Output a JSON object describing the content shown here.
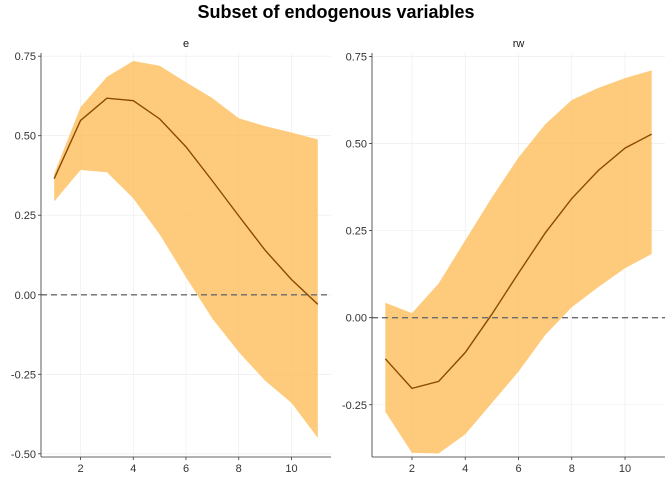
{
  "chart_title": "Subset of endogenous variables",
  "colors": {
    "ribbon": "#fdb950",
    "line": "#8b4a00",
    "zero_line": "#6b6b6b",
    "grid": "#ebebeb",
    "axis": "#333333"
  },
  "chart_data": [
    {
      "type": "area",
      "panel": "e",
      "x": [
        1,
        2,
        3,
        4,
        5,
        6,
        7,
        8,
        9,
        10,
        11
      ],
      "series": [
        {
          "role": "median",
          "values": [
            0.365,
            0.548,
            0.618,
            0.61,
            0.553,
            0.465,
            0.358,
            0.248,
            0.14,
            0.048,
            -0.03
          ]
        },
        {
          "role": "lower",
          "values": [
            0.293,
            0.392,
            0.385,
            0.303,
            0.19,
            0.055,
            -0.075,
            -0.18,
            -0.27,
            -0.34,
            -0.45
          ]
        },
        {
          "role": "upper",
          "values": [
            0.38,
            0.59,
            0.685,
            0.735,
            0.72,
            0.668,
            0.618,
            0.555,
            0.53,
            0.51,
            0.488
          ]
        }
      ],
      "xlim": [
        0.5,
        11.5
      ],
      "ylim": [
        -0.51,
        0.76
      ],
      "xticks": [
        2,
        4,
        6,
        8,
        10
      ],
      "xtick_labels": [
        "2",
        "4",
        "6",
        "8",
        "10"
      ],
      "yticks": [
        -0.5,
        -0.25,
        0,
        0.25,
        0.5,
        0.75
      ],
      "ytick_labels": [
        "-0.50",
        "-0.25",
        "0.00",
        "0.25",
        "0.50",
        "0.75"
      ],
      "reference_line": 0,
      "grid": true
    },
    {
      "type": "area",
      "panel": "rw",
      "x": [
        1,
        2,
        3,
        4,
        5,
        6,
        7,
        8,
        9,
        10,
        11
      ],
      "series": [
        {
          "role": "median",
          "values": [
            -0.118,
            -0.203,
            -0.183,
            -0.1,
            0.01,
            0.128,
            0.243,
            0.342,
            0.423,
            0.487,
            0.527
          ]
        },
        {
          "role": "lower",
          "values": [
            -0.27,
            -0.388,
            -0.39,
            -0.335,
            -0.245,
            -0.155,
            -0.05,
            0.03,
            0.088,
            0.142,
            0.183
          ]
        },
        {
          "role": "upper",
          "values": [
            0.043,
            0.013,
            0.098,
            0.222,
            0.345,
            0.46,
            0.555,
            0.625,
            0.66,
            0.688,
            0.71
          ]
        }
      ],
      "xlim": [
        0.5,
        11.5
      ],
      "ylim": [
        -0.4,
        0.76
      ],
      "xticks": [
        2,
        4,
        6,
        8,
        10
      ],
      "xtick_labels": [
        "2",
        "4",
        "6",
        "8",
        "10"
      ],
      "yticks": [
        -0.25,
        0,
        0.25,
        0.5,
        0.75
      ],
      "ytick_labels": [
        "-0.25",
        "0.00",
        "0.25",
        "0.50",
        "0.75"
      ],
      "reference_line": 0,
      "grid": true
    }
  ]
}
